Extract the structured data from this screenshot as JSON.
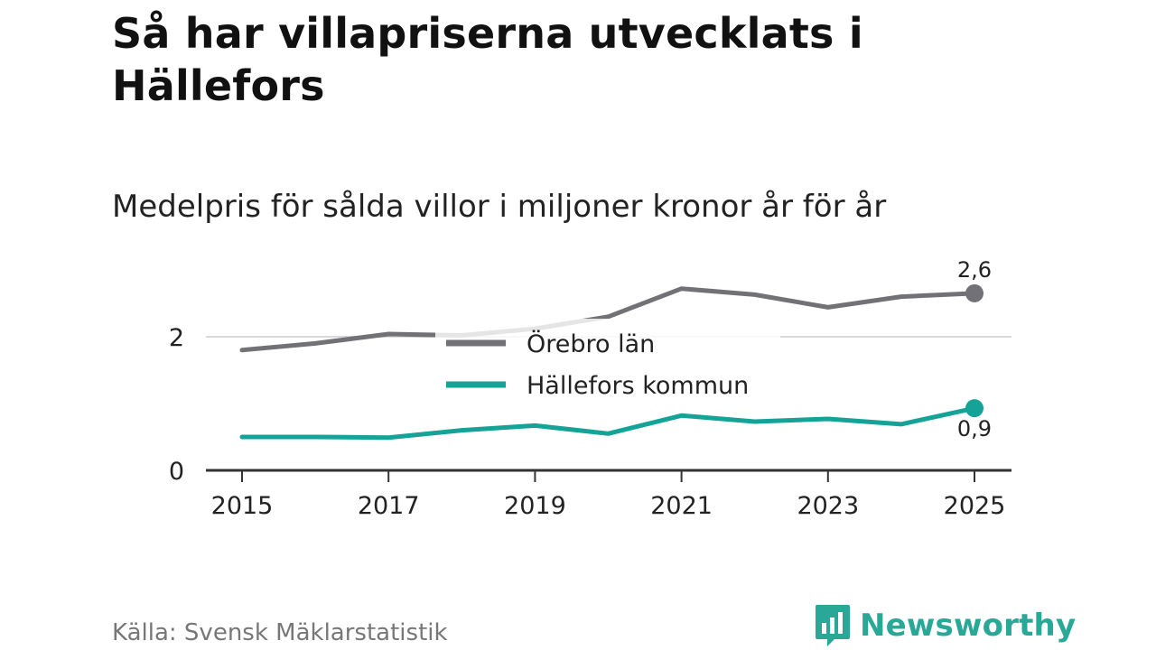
{
  "title": "Så har villapriserna utvecklats i Hällefors",
  "subtitle": "Medelpris för sålda villor i miljoner kronor år för år",
  "source": "Källa: Svensk Mäklarstatistik",
  "logo": {
    "text": "Newsworthy",
    "icon": "newsworthy-bar-chart-icon"
  },
  "colors": {
    "orebro": "#727176",
    "hallefors": "#14a396",
    "grid": "#d9d9d9",
    "axis": "#333333",
    "brand": "#2aa897"
  },
  "chart_data": {
    "type": "line",
    "title": "Så har villapriserna utvecklats i Hällefors",
    "subtitle": "Medelpris för sålda villor i miljoner kronor år för år",
    "xlabel": "",
    "ylabel": "",
    "x": [
      2015,
      2016,
      2017,
      2018,
      2019,
      2020,
      2021,
      2022,
      2023,
      2024,
      2025
    ],
    "x_ticks": [
      "2015",
      "2017",
      "2019",
      "2021",
      "2023",
      "2025"
    ],
    "y_ticks": [
      "0",
      "2"
    ],
    "ylim": [
      0,
      3
    ],
    "grid": true,
    "legend_position": "center",
    "series": [
      {
        "name": "Örebro län",
        "values": [
          1.8,
          1.9,
          2.04,
          2.02,
          2.12,
          2.3,
          2.72,
          2.63,
          2.44,
          2.6,
          2.65
        ],
        "end_label": "2,6"
      },
      {
        "name": "Hällefors kommun",
        "values": [
          0.5,
          0.5,
          0.49,
          0.6,
          0.67,
          0.55,
          0.82,
          0.73,
          0.77,
          0.69,
          0.93
        ],
        "end_label": "0,9"
      }
    ]
  }
}
